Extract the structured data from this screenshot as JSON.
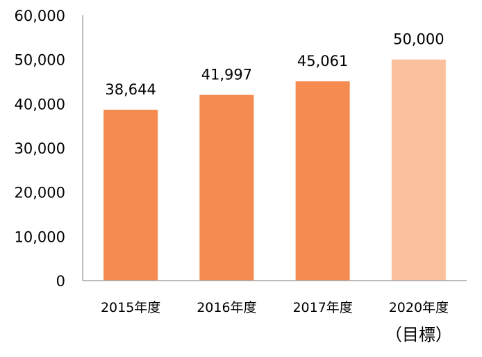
{
  "chart_data": {
    "type": "bar",
    "title": "",
    "xlabel": "",
    "ylabel": "",
    "categories": [
      "2015年度",
      "2016年度",
      "2017年度",
      "2020年度"
    ],
    "category_sublabels": [
      "",
      "",
      "",
      "（目標）"
    ],
    "values": [
      38644,
      41997,
      45061,
      50000
    ],
    "value_labels": [
      "38,644",
      "41,997",
      "45,061",
      "50,000"
    ],
    "ylim": [
      0,
      60000
    ],
    "yticks": [
      0,
      10000,
      20000,
      30000,
      40000,
      50000,
      60000
    ],
    "ytick_labels": [
      "0",
      "10,000",
      "20,000",
      "30,000",
      "40,000",
      "50,000",
      "60,000"
    ],
    "grid": false,
    "legend": "none",
    "colors": {
      "actual": "#f58b51",
      "target": "#fbc19d",
      "axis": "#a6a6a6"
    },
    "bar_is_target": [
      false,
      false,
      false,
      true
    ]
  }
}
